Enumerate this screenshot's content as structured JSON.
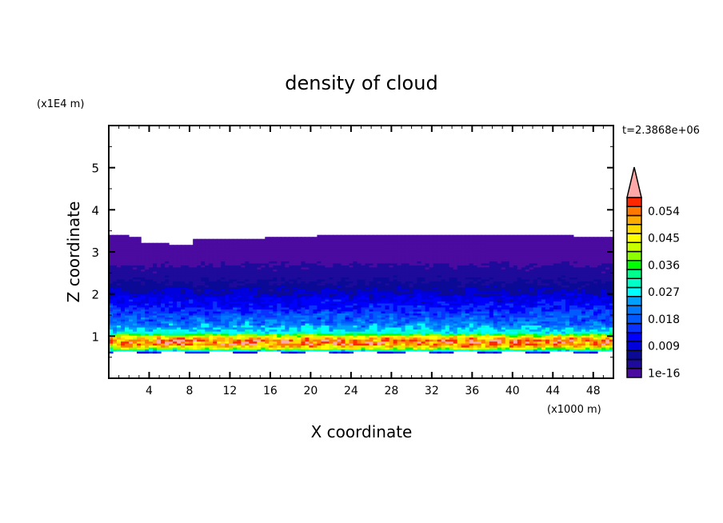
{
  "chart_data": {
    "type": "heatmap",
    "title": "density of cloud",
    "xlabel": "X coordinate",
    "ylabel": "Z coordinate",
    "x_unit": "(x1000 m)",
    "y_unit": "(x1E4 m)",
    "time_label": "t=2.3868e+06",
    "xlim": [
      0,
      50
    ],
    "ylim": [
      0,
      6
    ],
    "x_ticks": [
      4,
      8,
      12,
      16,
      20,
      24,
      28,
      32,
      36,
      40,
      44,
      48
    ],
    "x_tick_labels": [
      "4",
      "8",
      "12",
      "16",
      "20",
      "24",
      "28",
      "32",
      "36",
      "40",
      "44",
      "48"
    ],
    "y_ticks": [
      1,
      2,
      3,
      4,
      5
    ],
    "y_tick_labels": [
      "1",
      "2",
      "3",
      "4",
      "5"
    ],
    "grid": false,
    "colorbar": {
      "levels_start": 1e-16,
      "level_step": 0.003,
      "labels": [
        "1e-16",
        "0.009",
        "0.018",
        "0.027",
        "0.036",
        "0.045",
        "0.054"
      ],
      "label_box_index": [
        0,
        3,
        6,
        9,
        12,
        15,
        18
      ],
      "colors": [
        "#4b0aa0",
        "#1e0a9b",
        "#0a0a96",
        "#0000dc",
        "#0000ff",
        "#0a32ff",
        "#005aff",
        "#0078ff",
        "#00a0ff",
        "#00ffff",
        "#00ffc8",
        "#00ff8c",
        "#00ff00",
        "#8cff00",
        "#c8ff00",
        "#ffff00",
        "#ffdc00",
        "#ffaa00",
        "#ff7800",
        "#ff2800"
      ],
      "overflow_color": "#ffa8a8",
      "placement": "right"
    },
    "mean_vertical_profile": {
      "z": [
        0.6,
        0.7,
        0.8,
        0.9,
        1.0,
        1.1,
        1.3,
        1.6,
        2.0,
        2.3,
        2.7,
        3.0,
        3.4
      ],
      "density": [
        0.008,
        0.04,
        0.055,
        0.057,
        0.045,
        0.03,
        0.022,
        0.016,
        0.01,
        0.006,
        0.003,
        0.001,
        0.0002
      ]
    },
    "cloud_base_z": 0.62,
    "cloud_top_z": 3.4
  }
}
